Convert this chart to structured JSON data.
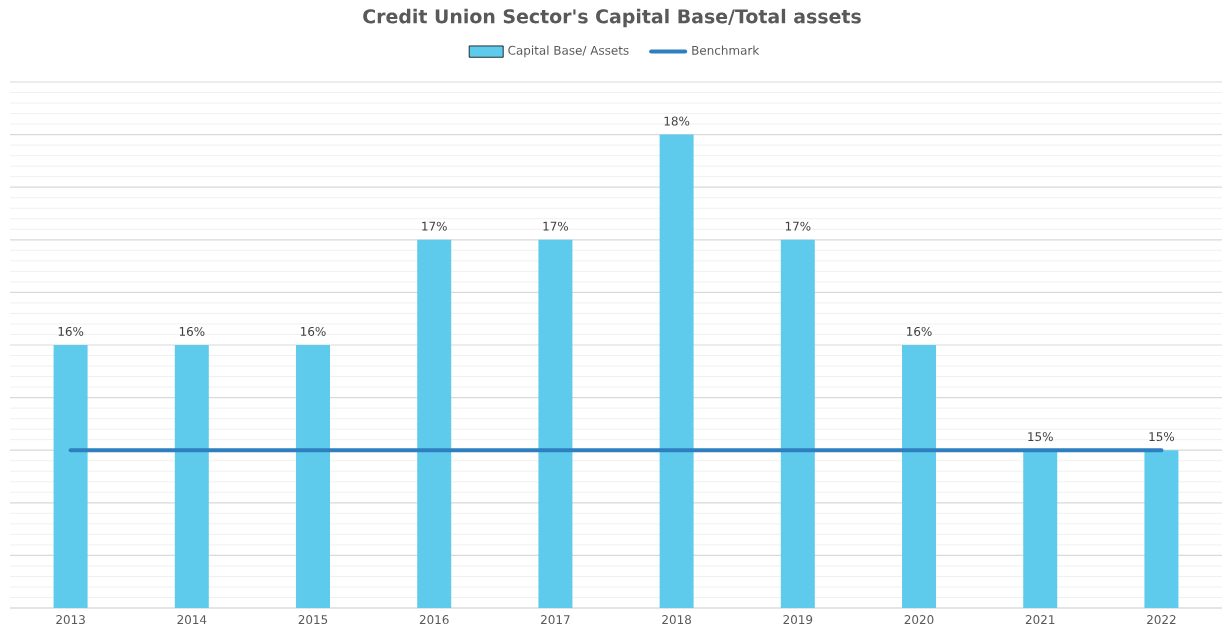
{
  "chart_data": {
    "type": "bar",
    "title": "Credit Union Sector's Capital Base/Total assets",
    "categories": [
      "2013",
      "2014",
      "2015",
      "2016",
      "2017",
      "2018",
      "2019",
      "2020",
      "2021",
      "2022"
    ],
    "series": [
      {
        "name": "Capital Base/ Assets",
        "color": "#5ecbed",
        "values": [
          16,
          16,
          16,
          17,
          17,
          18,
          17,
          16,
          15,
          15
        ],
        "value_labels": [
          "16%",
          "16%",
          "16%",
          "17%",
          "17%",
          "18%",
          "17%",
          "16%",
          "15%",
          "15%"
        ]
      },
      {
        "name": "Benchmark",
        "type": "line",
        "color": "#2e7fbf",
        "values": [
          15,
          15,
          15,
          15,
          15,
          15,
          15,
          15,
          15,
          15
        ]
      }
    ],
    "ylim": [
      13.5,
      18.5
    ],
    "yticks": [
      {
        "value": 13.5,
        "label": null
      },
      {
        "value": 14,
        "label": null
      },
      {
        "value": 14.5,
        "label": null
      },
      {
        "value": 15,
        "label": null
      },
      {
        "value": 15.5,
        "label": null
      },
      {
        "value": 16,
        "label": null
      },
      {
        "value": 16.5,
        "label": null
      },
      {
        "value": 17,
        "label": null
      },
      {
        "value": 17.5,
        "label": null
      },
      {
        "value": 18,
        "label": null
      },
      {
        "value": 18.5,
        "label": null
      }
    ],
    "tick_labels": "x",
    "grid": "y",
    "legend": "top",
    "marker": "none",
    "line_style": "solid"
  }
}
